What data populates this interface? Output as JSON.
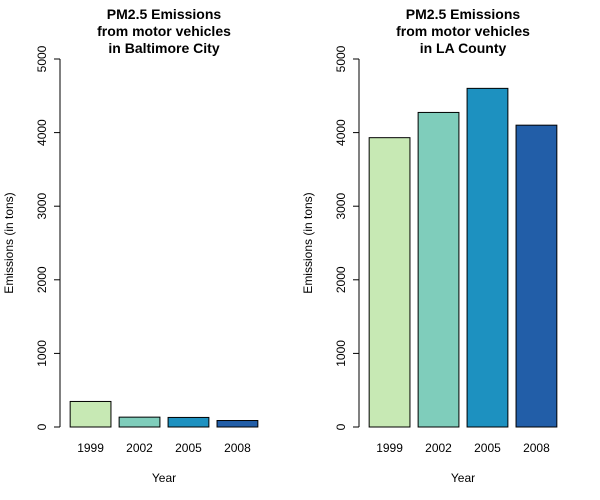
{
  "chart_data": [
    {
      "type": "bar",
      "title": [
        "PM2.5 Emissions",
        "from motor vehicles",
        "in Baltimore City"
      ],
      "xlabel": "Year",
      "ylabel": "Emissions (in tons)",
      "categories": [
        "1999",
        "2002",
        "2005",
        "2008"
      ],
      "values": [
        347,
        134,
        130,
        88
      ],
      "ylim": [
        0,
        5000
      ],
      "yticks": [
        0,
        1000,
        2000,
        3000,
        4000,
        5000
      ],
      "colors": [
        "#c7e9b4",
        "#7fcdbb",
        "#1d91c0",
        "#225ea8"
      ],
      "grid": false,
      "legend": "none"
    },
    {
      "type": "bar",
      "title": [
        "PM2.5 Emissions",
        "from motor vehicles",
        "in LA County"
      ],
      "xlabel": "Year",
      "ylabel": "Emissions (in tons)",
      "categories": [
        "1999",
        "2002",
        "2005",
        "2008"
      ],
      "values": [
        3931,
        4274,
        4601,
        4101
      ],
      "ylim": [
        0,
        5000
      ],
      "yticks": [
        0,
        1000,
        2000,
        3000,
        4000,
        5000
      ],
      "colors": [
        "#c7e9b4",
        "#7fcdbb",
        "#1d91c0",
        "#225ea8"
      ],
      "grid": false,
      "legend": "none"
    }
  ]
}
